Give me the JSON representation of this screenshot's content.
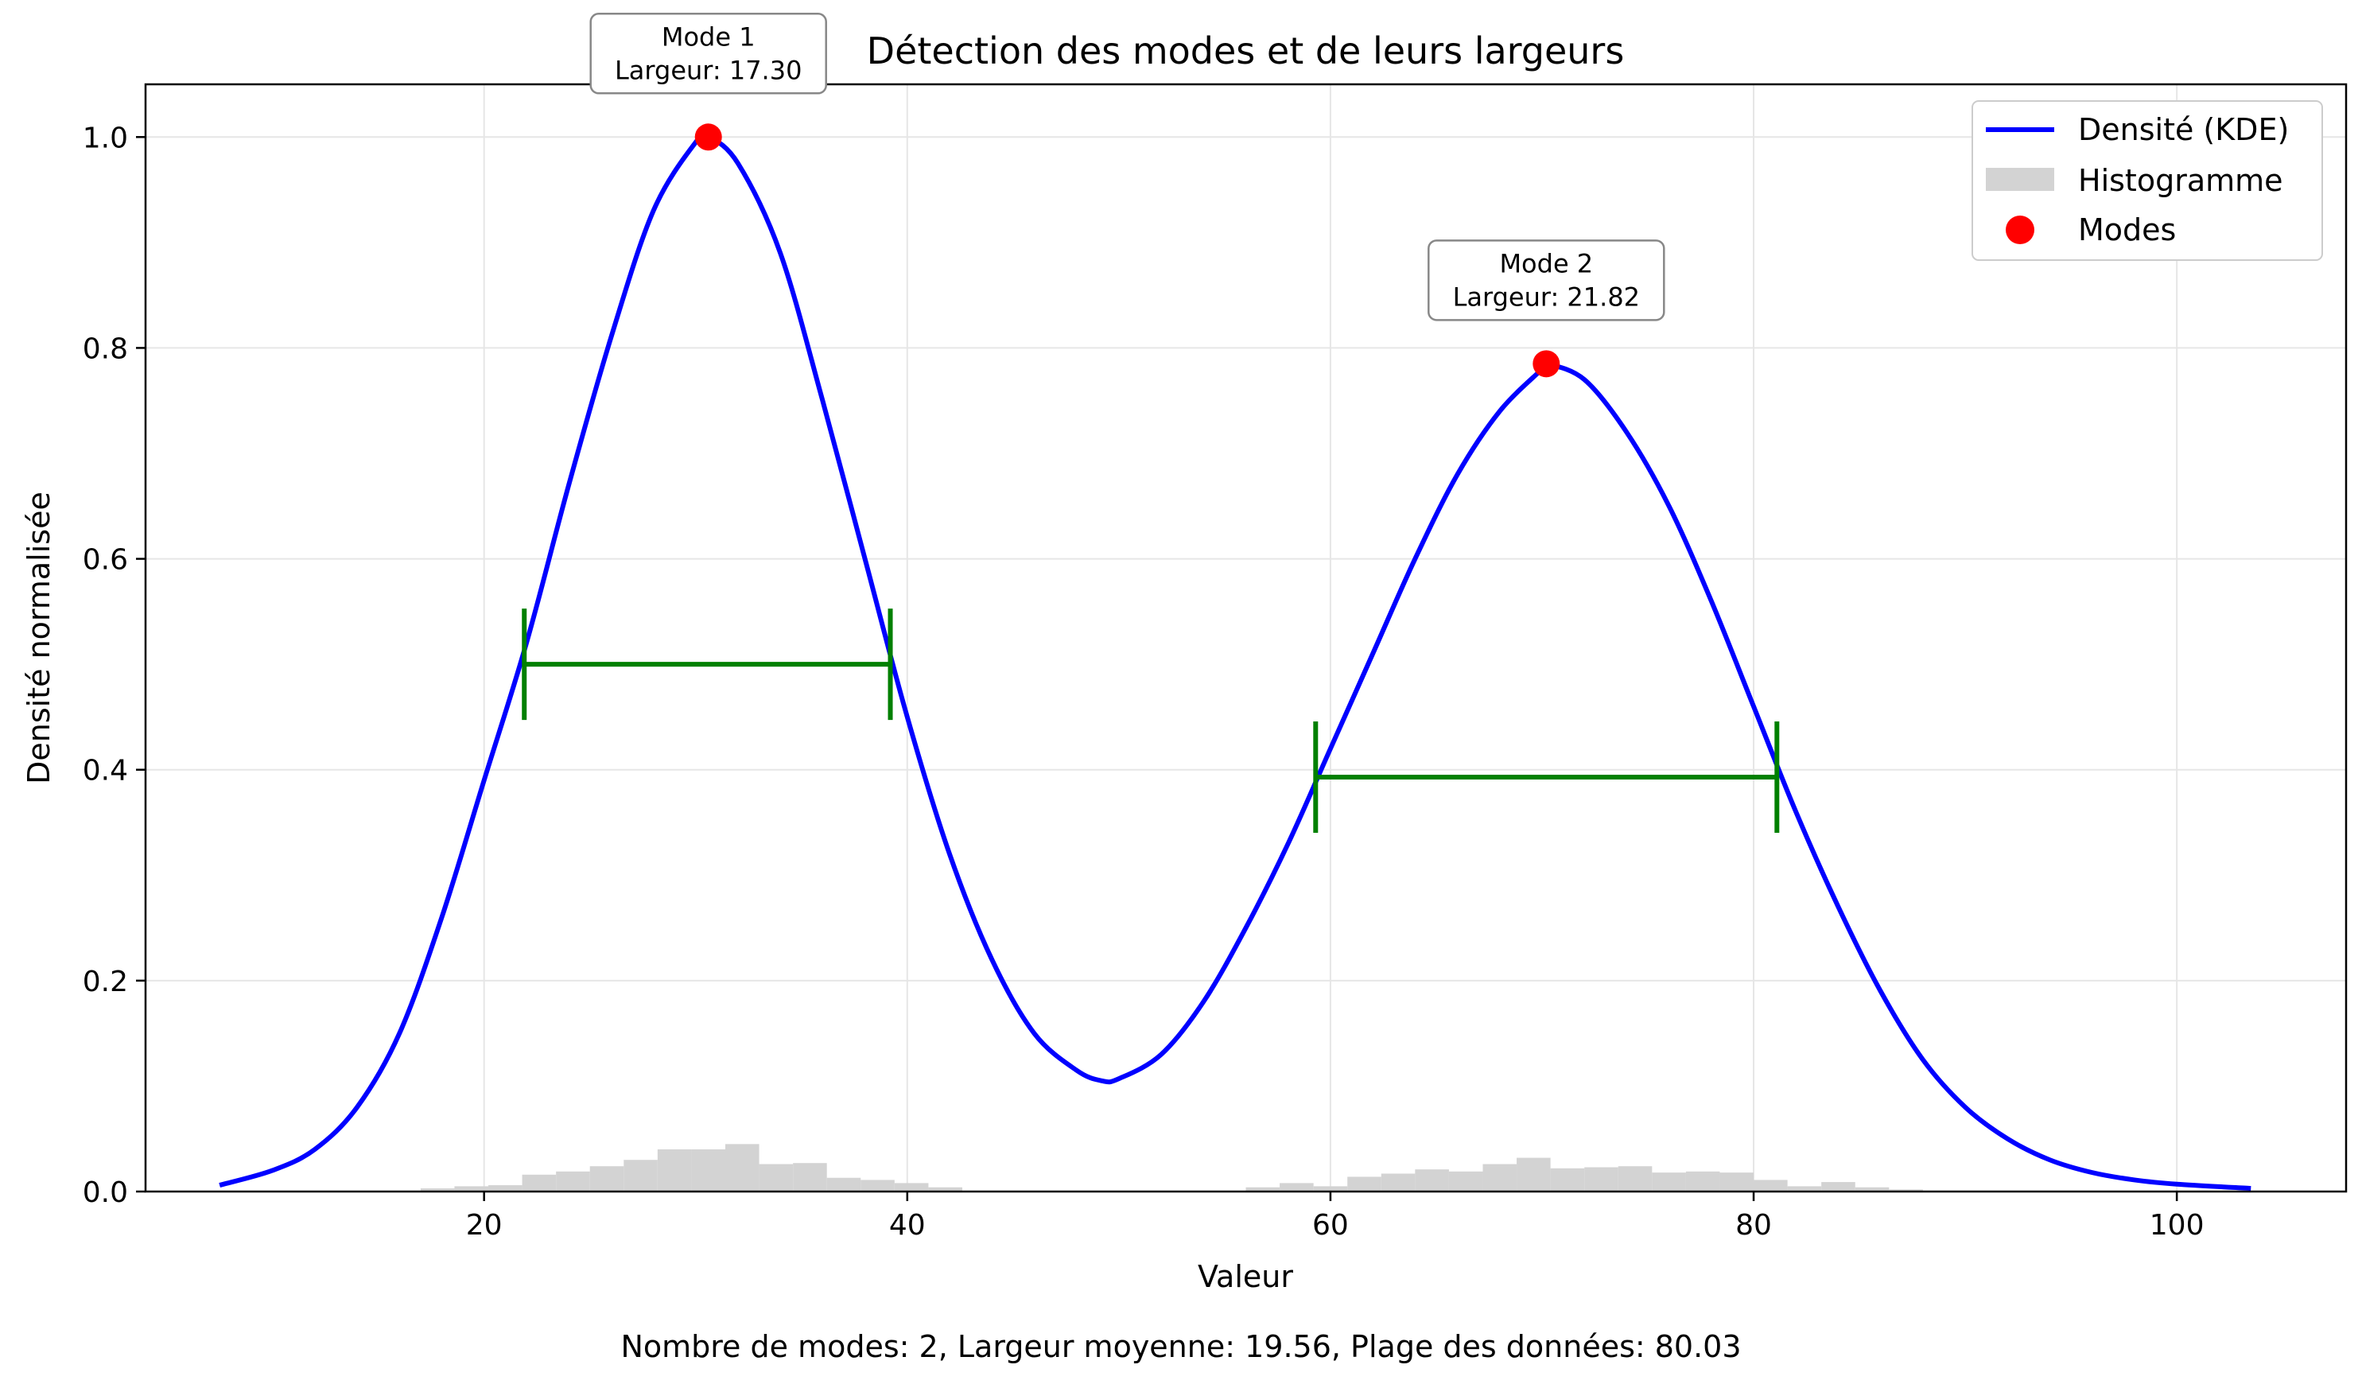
{
  "chart_data": {
    "type": "line",
    "title": "Détection des modes et de leurs largeurs",
    "xlabel": "Valeur",
    "ylabel": "Densité normalisée",
    "footer": "Nombre de modes: 2, Largeur moyenne: 19.56, Plage des données: 80.03",
    "xlim": [
      4.0,
      108.0
    ],
    "ylim": [
      0.0,
      1.05
    ],
    "xticks": [
      20,
      40,
      60,
      80,
      100
    ],
    "yticks": [
      0.0,
      0.2,
      0.4,
      0.6,
      0.8,
      1.0
    ],
    "xtick_labels": [
      "20",
      "40",
      "60",
      "80",
      "100"
    ],
    "ytick_labels": [
      "0.0",
      "0.2",
      "0.4",
      "0.6",
      "0.8",
      "1.0"
    ],
    "grid": true,
    "legend_placement": "top-right",
    "legend": {
      "kde": "Densité (KDE)",
      "hist": "Histogramme",
      "modes": "Modes"
    },
    "colors": {
      "kde": "#0000ff",
      "hist": "#d3d3d3",
      "modes": "#ff0000",
      "width_bar": "#008000"
    },
    "kde": {
      "name": "Densité (KDE)",
      "x": [
        7.5,
        10,
        12,
        14,
        16,
        18,
        20,
        22,
        24,
        26,
        28,
        30,
        30.6,
        32,
        34,
        36,
        38,
        40,
        42,
        44,
        46,
        48,
        49.2,
        50,
        52,
        54,
        56,
        58,
        60,
        62,
        64,
        66,
        68,
        70,
        70.2,
        72,
        74,
        76,
        78,
        80,
        82,
        84,
        86,
        88,
        90,
        92,
        94,
        96,
        98,
        100,
        103.5
      ],
      "y": [
        0.006,
        0.02,
        0.04,
        0.08,
        0.15,
        0.26,
        0.39,
        0.52,
        0.67,
        0.81,
        0.93,
        0.995,
        1.0,
        0.975,
        0.89,
        0.75,
        0.6,
        0.45,
        0.32,
        0.22,
        0.15,
        0.115,
        0.105,
        0.107,
        0.13,
        0.18,
        0.25,
        0.33,
        0.42,
        0.51,
        0.6,
        0.68,
        0.74,
        0.78,
        0.785,
        0.77,
        0.72,
        0.65,
        0.56,
        0.46,
        0.36,
        0.27,
        0.19,
        0.125,
        0.08,
        0.05,
        0.03,
        0.018,
        0.011,
        0.007,
        0.003
      ]
    },
    "histogram": {
      "name": "Histogramme",
      "bin_width": 1.6,
      "bin_starts": [
        17.0,
        18.6,
        20.2,
        21.8,
        23.4,
        25.0,
        26.6,
        28.2,
        29.8,
        31.4,
        33.0,
        34.6,
        36.2,
        37.8,
        39.4,
        41.0,
        56.0,
        57.6,
        59.2,
        60.8,
        62.4,
        64.0,
        65.6,
        67.2,
        68.8,
        70.4,
        72.0,
        73.6,
        75.2,
        76.8,
        78.4,
        80.0,
        81.6,
        83.2,
        84.8,
        86.4
      ],
      "values": [
        0.003,
        0.005,
        0.006,
        0.016,
        0.019,
        0.024,
        0.03,
        0.04,
        0.04,
        0.045,
        0.026,
        0.027,
        0.013,
        0.011,
        0.008,
        0.004,
        0.004,
        0.008,
        0.005,
        0.014,
        0.017,
        0.021,
        0.019,
        0.026,
        0.032,
        0.022,
        0.023,
        0.024,
        0.018,
        0.019,
        0.018,
        0.011,
        0.005,
        0.009,
        0.004,
        0.002
      ]
    },
    "modes": [
      {
        "name": "Mode 1",
        "x": 30.6,
        "y": 1.0,
        "label": "Mode 1",
        "width_label": "Largeur: 17.30",
        "left": 21.9,
        "right": 39.2,
        "half_height": 0.5
      },
      {
        "name": "Mode 2",
        "x": 70.2,
        "y": 0.785,
        "label": "Mode 2",
        "width_label": "Largeur: 21.82",
        "left": 59.3,
        "right": 81.1,
        "half_height": 0.393
      }
    ]
  }
}
